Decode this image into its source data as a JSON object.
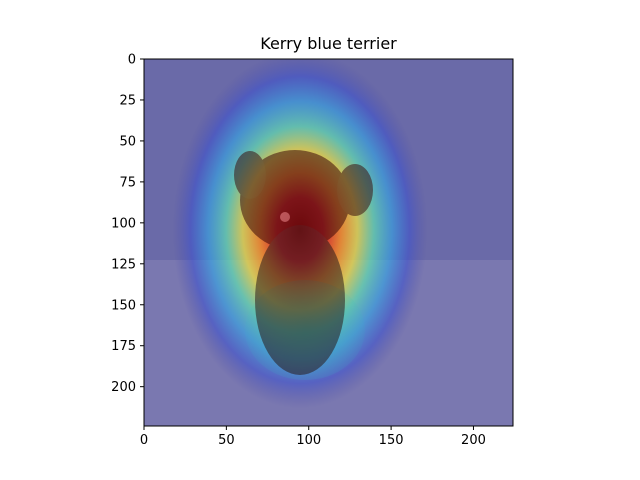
{
  "chart_data": {
    "type": "heatmap",
    "title": "Kerry blue terrier",
    "xlabel": "",
    "ylabel": "",
    "xlim": [
      0,
      224
    ],
    "ylim": [
      224,
      0
    ],
    "xticks": [
      0,
      50,
      100,
      150,
      200
    ],
    "yticks": [
      0,
      25,
      50,
      75,
      100,
      125,
      150,
      175,
      200
    ],
    "grid": false,
    "colormap": "jet",
    "overlay_peak": {
      "x": 95,
      "y": 100
    },
    "image_content": "photo of a small dark long-haired dog standing on sandy ground"
  }
}
